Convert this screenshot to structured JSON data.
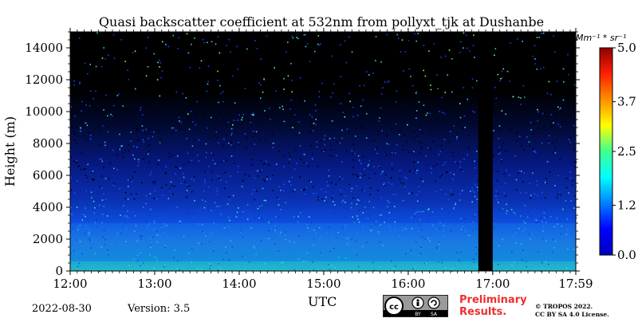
{
  "footer": {
    "date": "2022-08-30",
    "version": "Version: 3.5",
    "preliminary_line1": "Preliminary",
    "preliminary_line2": "Results.",
    "copyright_line1": "© TROPOS 2022.",
    "copyright_line2": "CC BY SA 4.0 License.",
    "license_badge": {
      "cc": "cc",
      "by": "BY",
      "sa": "SA"
    }
  },
  "chart_data": {
    "type": "heatmap",
    "title": "Quasi backscatter coefficient at 532nm from pollyxt_tjk at Dushanbe",
    "xlabel": "UTC",
    "ylabel": "Height (m)",
    "x_ticks": [
      "12:00",
      "13:00",
      "14:00",
      "15:00",
      "16:00",
      "17:00",
      "17:59"
    ],
    "x_range_hours": [
      12.0,
      17.983
    ],
    "y_ticks": [
      0,
      2000,
      4000,
      6000,
      8000,
      10000,
      12000,
      14000
    ],
    "ylim": [
      0,
      15000
    ],
    "colorbar": {
      "label": "Mm⁻¹ * sr⁻¹",
      "ticks": [
        "0.0",
        "1.2",
        "2.5",
        "3.7",
        "5.0"
      ],
      "range": [
        0,
        5.0
      ],
      "colormap": "jet"
    },
    "data_gap_hours": [
      16.83,
      17.0
    ],
    "layers": [
      {
        "height_range_m": [
          0,
          600
        ],
        "value": 1.3
      },
      {
        "height_range_m": [
          600,
          3000
        ],
        "value": 1.0
      },
      {
        "height_range_m": [
          3000,
          4500
        ],
        "value": 0.6
      },
      {
        "height_range_m": [
          4500,
          15000
        ],
        "value": 0.3
      }
    ]
  }
}
